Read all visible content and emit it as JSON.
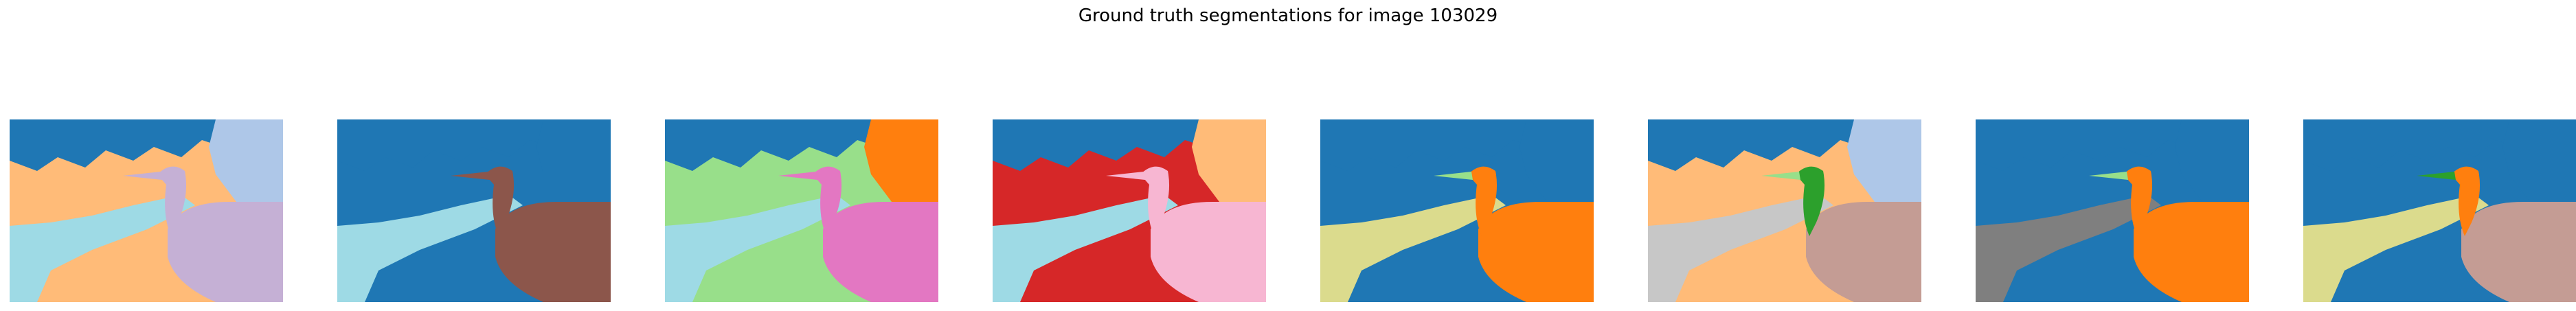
{
  "figure": {
    "title": "Ground truth segmentations for image 103029"
  },
  "palette": {
    "blue": "#1f77b4",
    "light_blue": "#aec7e8",
    "orange": "#ff7f0e",
    "light_orange": "#ffbb78",
    "green": "#2ca02c",
    "light_green": "#98df8a",
    "red": "#d62728",
    "purple": "#9467bd",
    "lavender": "#c5b0d5",
    "brown": "#8c564b",
    "rosy_brown": "#c49c94",
    "pink": "#e377c2",
    "light_pink": "#f7b6d2",
    "gray": "#7f7f7f",
    "light_gray": "#c7c7c7",
    "olive_light": "#dbdb8d",
    "cyan_light": "#9edae5",
    "cyan": "#17becf"
  },
  "panels": [
    {
      "name": "segmentation-1",
      "colors": {
        "bg": "light_orange",
        "sky": "blue",
        "sky2": "light_blue",
        "body": "lavender",
        "neck": "lavender",
        "beak": "lavender",
        "water": "cyan_light"
      }
    },
    {
      "name": "segmentation-2",
      "colors": {
        "bg": "blue",
        "sky": "blue",
        "sky2": "blue",
        "body": "brown",
        "neck": "brown",
        "beak": "brown",
        "water": "cyan_light"
      }
    },
    {
      "name": "segmentation-3",
      "colors": {
        "bg": "light_green",
        "sky": "blue",
        "sky2": "orange",
        "body": "pink",
        "neck": "pink",
        "beak": "pink",
        "water": "cyan_light"
      }
    },
    {
      "name": "segmentation-4",
      "colors": {
        "bg": "red",
        "sky": "blue",
        "sky2": "light_orange",
        "body": "light_pink",
        "neck": "light_pink",
        "beak": "light_pink",
        "water": "cyan_light"
      }
    },
    {
      "name": "segmentation-5",
      "colors": {
        "bg": "blue",
        "sky": "blue",
        "sky2": "blue",
        "body": "orange",
        "neck": "orange",
        "beak": "light_green",
        "water": "olive_light"
      }
    },
    {
      "name": "segmentation-6",
      "colors": {
        "bg": "light_orange",
        "sky": "blue",
        "sky2": "light_blue",
        "body": "rosy_brown",
        "neck": "green",
        "beak": "light_green",
        "water": "light_gray"
      }
    },
    {
      "name": "segmentation-7",
      "colors": {
        "bg": "blue",
        "sky": "blue",
        "sky2": "blue",
        "body": "orange",
        "neck": "orange",
        "beak": "light_green",
        "water": "gray"
      }
    },
    {
      "name": "segmentation-8",
      "colors": {
        "bg": "blue",
        "sky": "blue",
        "sky2": "blue",
        "body": "rosy_brown",
        "neck": "orange",
        "beak": "green",
        "water": "olive_light"
      }
    }
  ]
}
